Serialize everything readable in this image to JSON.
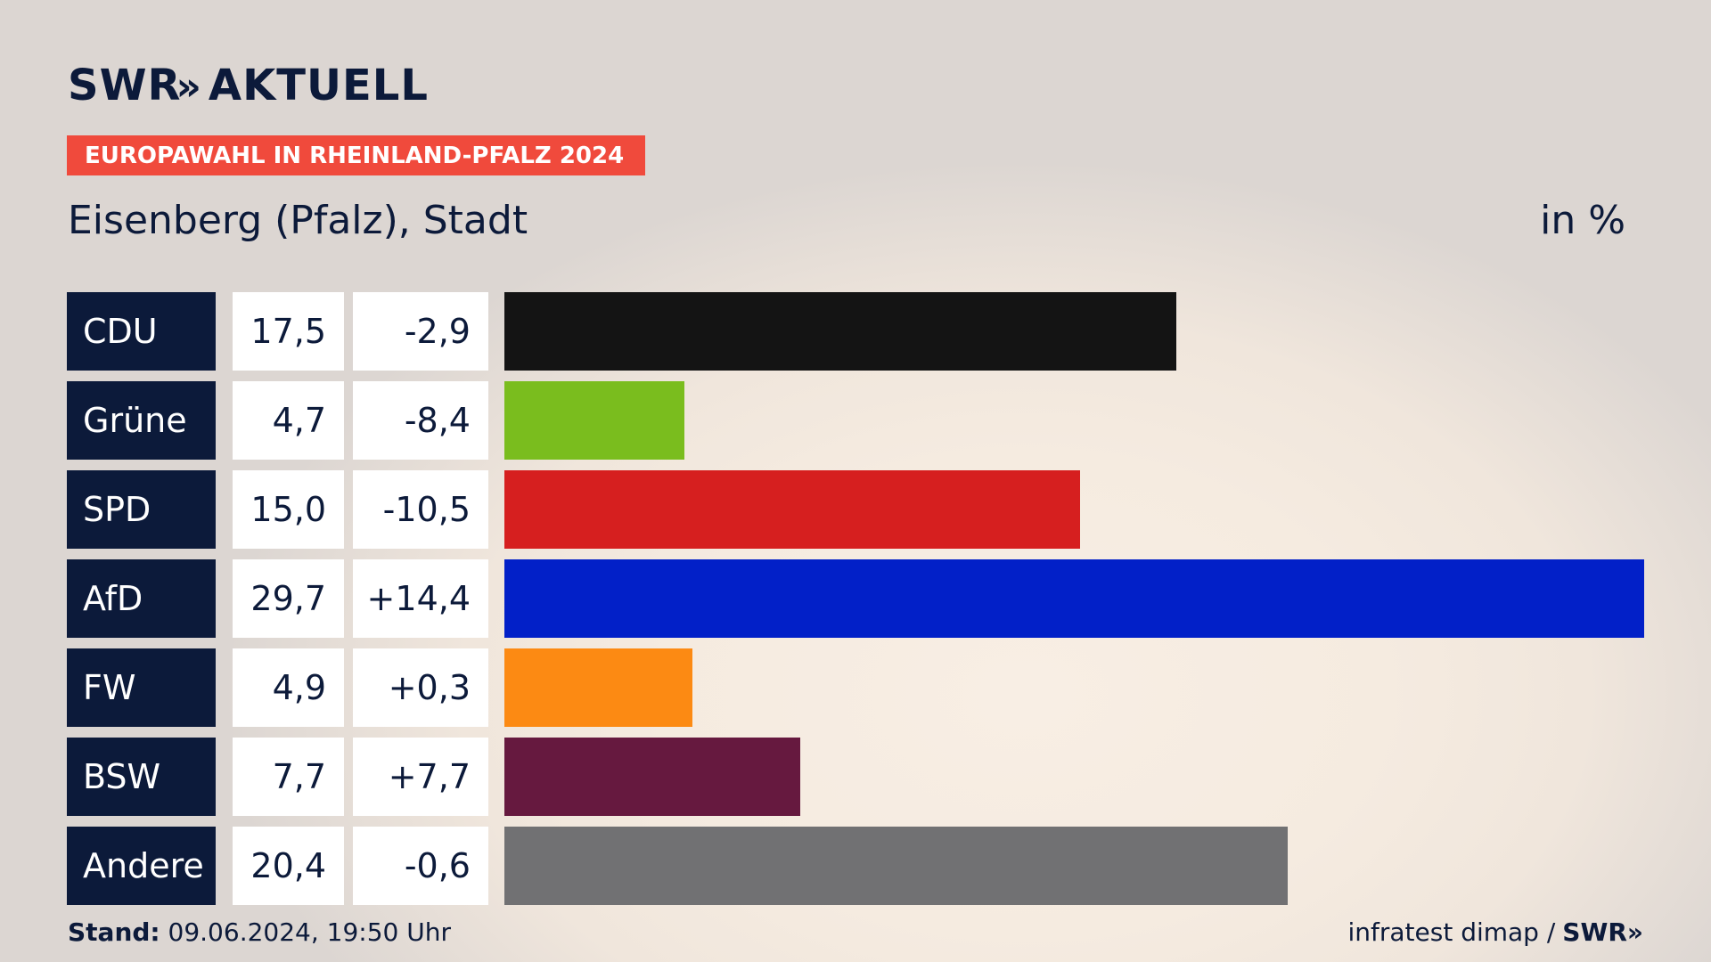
{
  "header": {
    "logo_text": "SWR",
    "logo_chevrons": "»",
    "logo_suffix": "AKTUELL",
    "banner": "EUROPAWAHL IN RHEINLAND-PFALZ 2024",
    "subtitle": "Eisenberg (Pfalz), Stadt",
    "unit": "in %"
  },
  "footer": {
    "stand_label": "Stand:",
    "stand_value": "09.06.2024, 19:50 Uhr",
    "source": "infratest dimap /",
    "source_logo": "SWR»"
  },
  "chart_data": {
    "type": "bar",
    "orientation": "horizontal",
    "categories": [
      "CDU",
      "Grüne",
      "SPD",
      "AfD",
      "FW",
      "BSW",
      "Andere"
    ],
    "values": [
      17.5,
      4.7,
      15.0,
      29.7,
      4.9,
      7.7,
      20.4
    ],
    "values_label": [
      "17,5",
      "4,7",
      "15,0",
      "29,7",
      "4,9",
      "7,7",
      "20,4"
    ],
    "changes_label": [
      "-2,9",
      "-8,4",
      "-10,5",
      "+14,4",
      "+0,3",
      "+7,7",
      "-0,6"
    ],
    "colors": [
      "#141414",
      "#7abd1e",
      "#d61f1f",
      "#0220c8",
      "#fc8a13",
      "#66193f",
      "#717173"
    ],
    "xlim": [
      0,
      29.7
    ]
  }
}
